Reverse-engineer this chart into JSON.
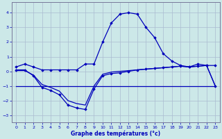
{
  "xlabel": "Graphe des températures (°c)",
  "background_color": "#cce8e8",
  "grid_color": "#aabbd0",
  "line_color": "#0000bb",
  "xlim": [
    -0.5,
    23.5
  ],
  "ylim": [
    -3.5,
    4.7
  ],
  "xticks": [
    0,
    1,
    2,
    3,
    4,
    5,
    6,
    7,
    8,
    9,
    10,
    11,
    12,
    13,
    14,
    15,
    16,
    17,
    18,
    19,
    20,
    21,
    22,
    23
  ],
  "yticks": [
    -3,
    -2,
    -1,
    0,
    1,
    2,
    3,
    4
  ],
  "hours": [
    0,
    1,
    2,
    3,
    4,
    5,
    6,
    7,
    8,
    9,
    10,
    11,
    12,
    13,
    14,
    15,
    16,
    17,
    18,
    19,
    20,
    21,
    22,
    23
  ],
  "line1": [
    0.3,
    0.5,
    0.3,
    0.1,
    0.1,
    0.1,
    0.1,
    0.1,
    0.5,
    0.5,
    2.0,
    3.3,
    3.9,
    4.0,
    3.9,
    3.0,
    2.3,
    1.2,
    0.7,
    0.4,
    0.3,
    0.5,
    0.4,
    0.4
  ],
  "line2": [
    0.1,
    0.1,
    -0.3,
    -1.1,
    -1.3,
    -1.6,
    -2.3,
    -2.5,
    -2.6,
    -1.2,
    -0.3,
    -0.15,
    -0.1,
    0.0,
    0.1,
    0.15,
    0.2,
    0.25,
    0.3,
    0.35,
    0.3,
    0.35,
    0.4,
    -1.0
  ],
  "line_flat": [
    -1.0,
    -1.0,
    -1.0,
    -1.0,
    -1.0,
    -1.0,
    -1.0,
    -1.0,
    -1.0,
    -1.0,
    -1.0,
    -1.0,
    -1.0,
    -1.0,
    -1.0,
    -1.0,
    -1.0,
    -1.0,
    -1.0,
    -1.0,
    -1.0,
    -1.0,
    -1.0,
    -1.0
  ],
  "line3": [
    0.05,
    0.05,
    -0.25,
    -0.9,
    -1.1,
    -1.35,
    -2.0,
    -2.2,
    -2.3,
    -1.0,
    -0.2,
    -0.05,
    0.0,
    0.05,
    0.1,
    0.15,
    0.2,
    0.25,
    0.3,
    0.35,
    0.3,
    0.35,
    0.4,
    -1.0
  ]
}
